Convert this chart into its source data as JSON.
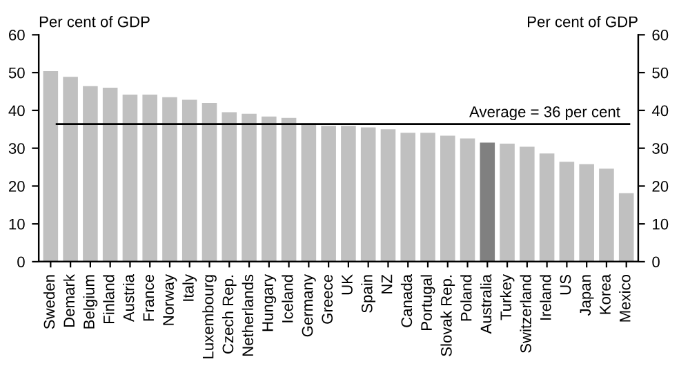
{
  "chart_data": {
    "type": "bar",
    "ylabel": "Per cent of GDP",
    "y2label": "Per cent of GDP",
    "categories": [
      "Sweden",
      "Demark",
      "Belgium",
      "Finland",
      "Austria",
      "France",
      "Norway",
      "Italy",
      "Luxembourg",
      "Czech Rep.",
      "Netherlands",
      "Hungary",
      "Iceland",
      "Germany",
      "Greece",
      "UK",
      "Spain",
      "NZ",
      "Canada",
      "Portugal",
      "Slovak Rep.",
      "Poland",
      "Australia",
      "Turkey",
      "Switzerland",
      "Ireland",
      "US",
      "Japan",
      "Korea",
      "Mexico"
    ],
    "values": [
      50.4,
      48.9,
      46.4,
      46.0,
      44.2,
      44.2,
      43.5,
      42.8,
      42.0,
      39.5,
      39.1,
      38.4,
      38.0,
      36.6,
      35.9,
      35.9,
      35.5,
      35.0,
      34.1,
      34.1,
      33.3,
      32.6,
      31.5,
      31.2,
      30.4,
      28.6,
      26.4,
      25.8,
      24.6,
      18.1
    ],
    "colors": [
      "#c0c0c0",
      "#c0c0c0",
      "#c0c0c0",
      "#c0c0c0",
      "#c0c0c0",
      "#c0c0c0",
      "#c0c0c0",
      "#c0c0c0",
      "#c0c0c0",
      "#c0c0c0",
      "#c0c0c0",
      "#c0c0c0",
      "#c0c0c0",
      "#c0c0c0",
      "#c0c0c0",
      "#c0c0c0",
      "#c0c0c0",
      "#c0c0c0",
      "#c0c0c0",
      "#c0c0c0",
      "#c0c0c0",
      "#c0c0c0",
      "#808080",
      "#c0c0c0",
      "#c0c0c0",
      "#c0c0c0",
      "#c0c0c0",
      "#c0c0c0",
      "#c0c0c0",
      "#c0c0c0"
    ],
    "ylim": [
      0,
      60
    ],
    "yticks": [
      0,
      10,
      20,
      30,
      40,
      50,
      60
    ],
    "y2lim": [
      0,
      60
    ],
    "y2ticks": [
      0,
      10,
      20,
      30,
      40,
      50,
      60
    ],
    "ref_lines": [
      {
        "axis": "y",
        "value": 36.4,
        "label": "Average = 36 per cent",
        "color": "#000000"
      }
    ],
    "grid": false,
    "legend": false
  }
}
